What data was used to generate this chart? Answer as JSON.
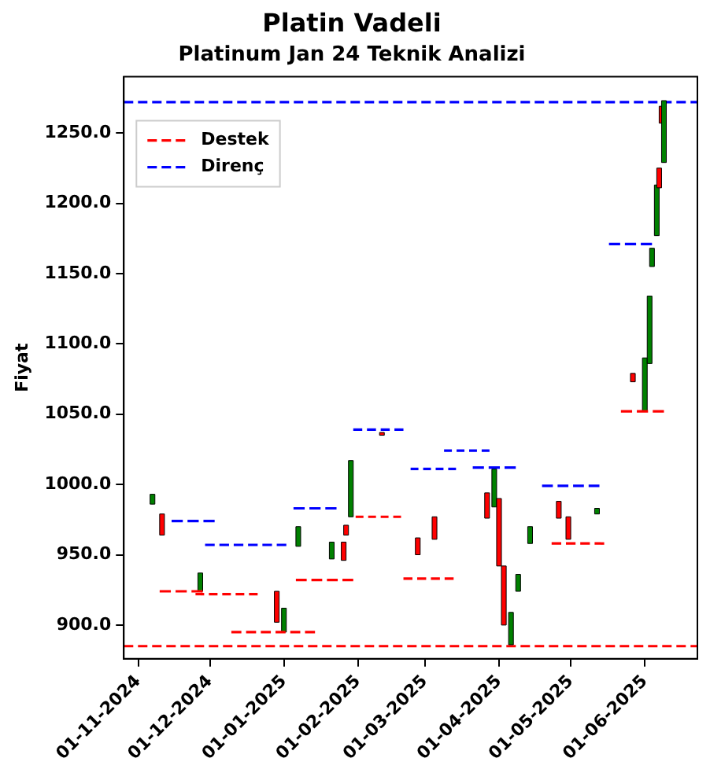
{
  "chart_data": {
    "type": "candlestick",
    "title": "Platin Vadeli",
    "subtitle": "Platinum Jan 24 Teknik Analizi",
    "ylabel": "Fiyat",
    "x": [
      "2024-11-07",
      "2024-11-11",
      "2024-11-27",
      "2024-12-29",
      "2025-01-01",
      "2025-01-07",
      "2025-01-21",
      "2025-01-26",
      "2025-01-27",
      "2025-01-29",
      "2025-02-11",
      "2025-02-26",
      "2025-03-05",
      "2025-03-27",
      "2025-03-30",
      "2025-04-01",
      "2025-04-03",
      "2025-04-06",
      "2025-04-09",
      "2025-04-14",
      "2025-04-26",
      "2025-04-30",
      "2025-05-12",
      "2025-05-27",
      "2025-06-01",
      "2025-06-03",
      "2025-06-04",
      "2025-06-06",
      "2025-06-07",
      "2025-06-08",
      "2025-06-09"
    ],
    "ohlc": [
      [
        986,
        993,
        986,
        993
      ],
      [
        979,
        979,
        964,
        964
      ],
      [
        924,
        937,
        924,
        937
      ],
      [
        924,
        924,
        902,
        902
      ],
      [
        895,
        912,
        895,
        912
      ],
      [
        956,
        970,
        956,
        970
      ],
      [
        947,
        959,
        947,
        959
      ],
      [
        959,
        959,
        946,
        946
      ],
      [
        971,
        971,
        964,
        964
      ],
      [
        977,
        1017,
        977,
        1017
      ],
      [
        1037,
        1037,
        1035,
        1035
      ],
      [
        962,
        962,
        950,
        950
      ],
      [
        977,
        977,
        961,
        961
      ],
      [
        994,
        994,
        976,
        976
      ],
      [
        984,
        1011,
        984,
        1011
      ],
      [
        990,
        990,
        942,
        942
      ],
      [
        942,
        942,
        900,
        900
      ],
      [
        886,
        909,
        886,
        909
      ],
      [
        924,
        936,
        924,
        936
      ],
      [
        958,
        970,
        958,
        970
      ],
      [
        988,
        988,
        976,
        976
      ],
      [
        977,
        977,
        961,
        961
      ],
      [
        979,
        983,
        979,
        983
      ],
      [
        1079,
        1079,
        1073,
        1073
      ],
      [
        1052,
        1090,
        1052,
        1090
      ],
      [
        1086,
        1134,
        1086,
        1134
      ],
      [
        1155,
        1168,
        1155,
        1168
      ],
      [
        1177,
        1213,
        1177,
        1213
      ],
      [
        1225,
        1225,
        1211,
        1211
      ],
      [
        1269,
        1269,
        1257,
        1257
      ],
      [
        1229,
        1273,
        1229,
        1273
      ]
    ],
    "colors": [
      "#008000",
      "#ff0000",
      "#008000",
      "#ff0000",
      "#008000",
      "#008000",
      "#008000",
      "#ff0000",
      "#ff0000",
      "#008000",
      "#ff0000",
      "#ff0000",
      "#ff0000",
      "#ff0000",
      "#008000",
      "#ff0000",
      "#ff0000",
      "#008000",
      "#008000",
      "#008000",
      "#ff0000",
      "#ff0000",
      "#008000",
      "#ff0000",
      "#008000",
      "#008000",
      "#008000",
      "#008000",
      "#ff0000",
      "#ff0000",
      "#008000"
    ],
    "series": [
      {
        "name": "Destek",
        "type": "line",
        "color": "#ff0000",
        "line_style": "dashed",
        "x": [
          "2024-11-10",
          "2024-11-28"
        ],
        "values": [
          924,
          924
        ]
      },
      {
        "type": "line",
        "color": "#ff0000",
        "line_style": "dashed",
        "x": [
          "2024-11-25",
          "2024-12-21"
        ],
        "values": [
          922,
          922
        ]
      },
      {
        "type": "line",
        "color": "#ff0000",
        "line_style": "dashed",
        "x": [
          "2024-12-10",
          "2025-01-14"
        ],
        "values": [
          895,
          895
        ]
      },
      {
        "type": "line",
        "color": "#ff0000",
        "line_style": "dashed",
        "x": [
          "2025-01-06",
          "2025-01-30"
        ],
        "values": [
          932,
          932
        ]
      },
      {
        "type": "line",
        "color": "#ff0000",
        "line_style": "dashed",
        "x": [
          "2025-01-31",
          "2025-02-19"
        ],
        "values": [
          977,
          977
        ]
      },
      {
        "type": "line",
        "color": "#ff0000",
        "line_style": "dashed",
        "x": [
          "2025-02-20",
          "2025-03-13"
        ],
        "values": [
          933,
          933
        ]
      },
      {
        "type": "line",
        "color": "#ff0000",
        "line_style": "dashed",
        "x": [
          "2025-04-23",
          "2025-05-15"
        ],
        "values": [
          958,
          958
        ]
      },
      {
        "type": "line",
        "color": "#ff0000",
        "line_style": "dashed",
        "x": [
          "2025-05-22",
          "2025-06-09"
        ],
        "values": [
          1052,
          1052
        ]
      },
      {
        "name": "Direnç",
        "type": "line",
        "color": "#0000ff",
        "line_style": "dashed",
        "x": [
          "2024-11-15",
          "2024-12-03"
        ],
        "values": [
          974,
          974
        ]
      },
      {
        "type": "line",
        "color": "#0000ff",
        "line_style": "dashed",
        "x": [
          "2024-11-29",
          "2025-01-02"
        ],
        "values": [
          957,
          957
        ]
      },
      {
        "type": "line",
        "color": "#0000ff",
        "line_style": "dashed",
        "x": [
          "2025-01-05",
          "2025-01-23"
        ],
        "values": [
          983,
          983
        ]
      },
      {
        "type": "line",
        "color": "#0000ff",
        "line_style": "dashed",
        "x": [
          "2025-01-30",
          "2025-02-20"
        ],
        "values": [
          1039,
          1039
        ]
      },
      {
        "type": "line",
        "color": "#0000ff",
        "line_style": "dashed",
        "x": [
          "2025-02-23",
          "2025-03-14"
        ],
        "values": [
          1011,
          1011
        ]
      },
      {
        "type": "line",
        "color": "#0000ff",
        "line_style": "dashed",
        "x": [
          "2025-03-09",
          "2025-03-28"
        ],
        "values": [
          1024,
          1024
        ]
      },
      {
        "type": "line",
        "color": "#0000ff",
        "line_style": "dashed",
        "x": [
          "2025-03-21",
          "2025-04-08"
        ],
        "values": [
          1012,
          1012
        ]
      },
      {
        "type": "line",
        "color": "#0000ff",
        "line_style": "dashed",
        "x": [
          "2025-04-19",
          "2025-05-13"
        ],
        "values": [
          999,
          999
        ]
      },
      {
        "type": "line",
        "color": "#0000ff",
        "line_style": "dashed",
        "x": [
          "2025-05-17",
          "2025-06-04"
        ],
        "values": [
          1171,
          1171
        ]
      }
    ],
    "ref_lines": [
      {
        "axis": "y",
        "value": 885,
        "color": "#ff0000",
        "line_style": "dashed"
      },
      {
        "axis": "y",
        "value": 1272,
        "color": "#0000ff",
        "line_style": "dashed"
      }
    ],
    "xlim": [
      "2024-10-26",
      "2025-06-23"
    ],
    "xticks": [
      {
        "value": "2024-11-01",
        "label": "01-11-2024"
      },
      {
        "value": "2024-12-01",
        "label": "01-12-2024"
      },
      {
        "value": "2025-01-01",
        "label": "01-01-2025"
      },
      {
        "value": "2025-02-01",
        "label": "01-02-2025"
      },
      {
        "value": "2025-03-01",
        "label": "01-03-2025"
      },
      {
        "value": "2025-04-01",
        "label": "01-04-2025"
      },
      {
        "value": "2025-05-01",
        "label": "01-05-2025"
      },
      {
        "value": "2025-06-01",
        "label": "01-06-2025"
      }
    ],
    "ylim": [
      876,
      1290
    ],
    "yticks": [
      {
        "value": 900,
        "label": "900.0"
      },
      {
        "value": 950,
        "label": "950.0"
      },
      {
        "value": 1000,
        "label": "1000.0"
      },
      {
        "value": 1050,
        "label": "1050.0"
      },
      {
        "value": 1100,
        "label": "1100.0"
      },
      {
        "value": 1150,
        "label": "1150.0"
      },
      {
        "value": 1200,
        "label": "1200.0"
      },
      {
        "value": 1250,
        "label": "1250.0"
      }
    ],
    "grid": false,
    "legend": "top left"
  }
}
